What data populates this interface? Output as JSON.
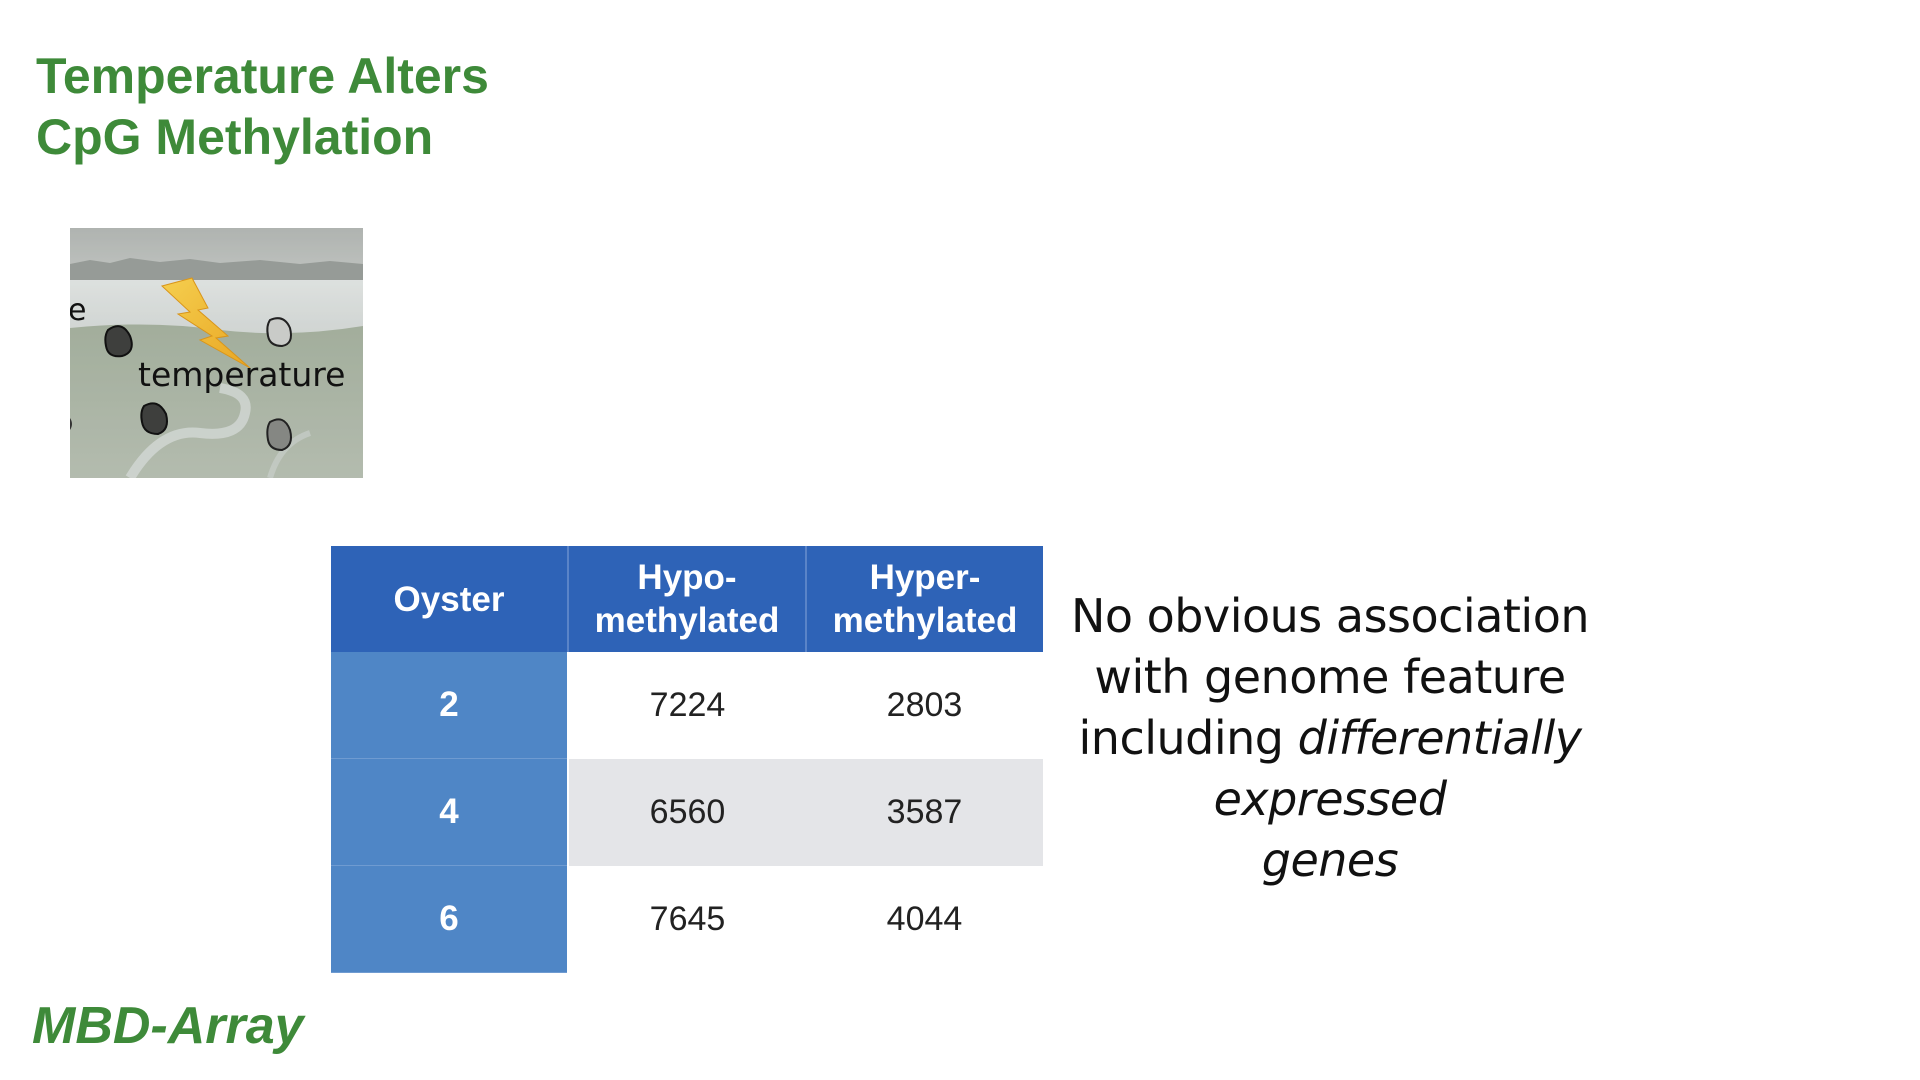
{
  "title": {
    "line1": "Temperature Alters",
    "line2": "CpG Methylation"
  },
  "photo": {
    "label": "temperature",
    "icon": "lightning-bolt-icon",
    "edge_letter": "e"
  },
  "table": {
    "headers": {
      "col1": "Oyster",
      "col2_line1": "Hypo-",
      "col2_line2": "methylated",
      "col3_line1": "Hyper-",
      "col3_line2": "methylated"
    },
    "rows": [
      {
        "oyster": "2",
        "hypo": "7224",
        "hyper": "2803"
      },
      {
        "oyster": "4",
        "hypo": "6560",
        "hyper": "3587"
      },
      {
        "oyster": "6",
        "hypo": "7645",
        "hyper": "4044"
      }
    ]
  },
  "note": {
    "line1": "No obvious association",
    "line2": "with genome feature",
    "line3_plain": "including ",
    "line3_italic": "differentially",
    "line4": "expressed",
    "line5": "genes"
  },
  "footer": "MBD-Array",
  "colors": {
    "title_green": "#3e8a39",
    "header_blue": "#2e63b7",
    "rowhead_blue": "#4f86c6",
    "alt_row_gray": "#e4e5e8"
  }
}
